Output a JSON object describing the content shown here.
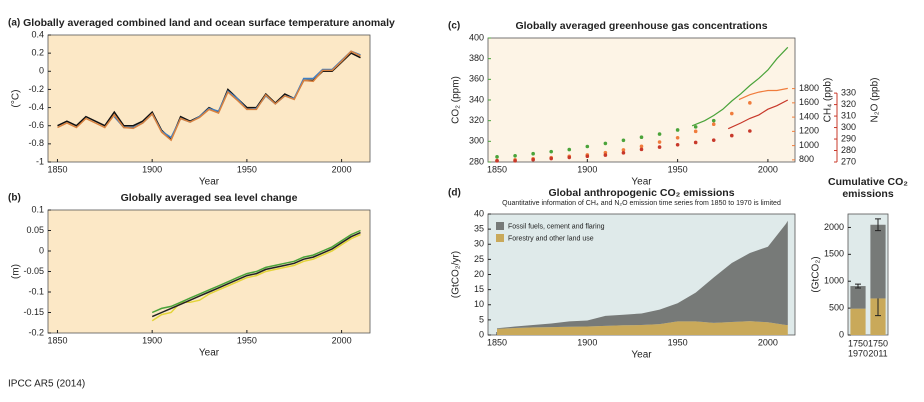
{
  "chart_data": [
    {
      "type": "line",
      "panel_label": "(a)",
      "title": "Globally averaged combined land and ocean surface temperature anomaly",
      "xlabel": "Year",
      "ylabel": "(°C)",
      "background": "#fce8c6",
      "xlim": [
        1845,
        2015
      ],
      "xticks": [
        1850,
        1900,
        1950,
        2000
      ],
      "ylim": [
        -1,
        0.4
      ],
      "yticks": [
        -1,
        -0.8,
        -0.6,
        -0.4,
        -0.2,
        0,
        0.2,
        0.4
      ],
      "x": [
        1850,
        1855,
        1860,
        1865,
        1870,
        1875,
        1880,
        1885,
        1890,
        1895,
        1900,
        1905,
        1910,
        1915,
        1920,
        1925,
        1930,
        1935,
        1940,
        1945,
        1950,
        1955,
        1960,
        1965,
        1970,
        1975,
        1980,
        1985,
        1990,
        1995,
        2000,
        2005,
        2010
      ],
      "series": [
        {
          "color": "#111111",
          "values": [
            -0.6,
            -0.55,
            -0.6,
            -0.5,
            -0.55,
            -0.6,
            -0.45,
            -0.6,
            -0.6,
            -0.55,
            -0.45,
            -0.65,
            -0.75,
            -0.5,
            -0.55,
            -0.5,
            -0.4,
            -0.45,
            -0.2,
            -0.3,
            -0.4,
            -0.4,
            -0.25,
            -0.35,
            -0.25,
            -0.3,
            -0.1,
            -0.1,
            0.0,
            0.0,
            0.1,
            0.2,
            0.15
          ]
        },
        {
          "color": "#3f7fc4",
          "values": [
            null,
            null,
            null,
            null,
            null,
            null,
            -0.5,
            -0.62,
            -0.62,
            -0.57,
            -0.47,
            -0.66,
            -0.73,
            -0.52,
            -0.56,
            -0.5,
            -0.41,
            -0.44,
            -0.22,
            -0.3,
            -0.42,
            -0.41,
            -0.27,
            -0.36,
            -0.27,
            -0.3,
            -0.08,
            -0.08,
            0.02,
            0.02,
            0.12,
            0.22,
            0.18
          ]
        },
        {
          "color": "#d9823f",
          "values": [
            -0.62,
            -0.57,
            -0.62,
            -0.52,
            -0.57,
            -0.62,
            -0.48,
            -0.62,
            -0.63,
            -0.57,
            -0.47,
            -0.67,
            -0.76,
            -0.52,
            -0.56,
            -0.51,
            -0.42,
            -0.46,
            -0.23,
            -0.32,
            -0.42,
            -0.42,
            -0.26,
            -0.36,
            -0.27,
            -0.31,
            -0.1,
            -0.11,
            0.01,
            0.01,
            0.11,
            0.22,
            0.17
          ]
        }
      ]
    },
    {
      "type": "line",
      "panel_label": "(b)",
      "title": "Globally averaged sea level change",
      "xlabel": "Year",
      "ylabel": "(m)",
      "background": "#fce8c6",
      "xlim": [
        1845,
        2015
      ],
      "xticks": [
        1850,
        1900,
        1950,
        2000
      ],
      "ylim": [
        -0.2,
        0.1
      ],
      "yticks": [
        -0.2,
        -0.15,
        -0.1,
        -0.05,
        0,
        0.05,
        0.1
      ],
      "x": [
        1900,
        1905,
        1910,
        1915,
        1920,
        1925,
        1930,
        1935,
        1940,
        1945,
        1950,
        1955,
        1960,
        1965,
        1970,
        1975,
        1980,
        1985,
        1990,
        1995,
        2000,
        2005,
        2010
      ],
      "series": [
        {
          "color": "#e3d43a",
          "values": [
            -0.17,
            -0.155,
            -0.15,
            -0.125,
            -0.125,
            -0.12,
            -0.105,
            -0.095,
            -0.085,
            -0.075,
            -0.065,
            -0.06,
            -0.05,
            -0.045,
            -0.04,
            -0.035,
            -0.025,
            -0.02,
            -0.01,
            0,
            0.015,
            0.03,
            0.04
          ]
        },
        {
          "color": "#4aa33a",
          "values": [
            -0.15,
            -0.14,
            -0.135,
            -0.125,
            -0.115,
            -0.105,
            -0.095,
            -0.085,
            -0.075,
            -0.065,
            -0.055,
            -0.05,
            -0.04,
            -0.035,
            -0.03,
            -0.025,
            -0.015,
            -0.01,
            0,
            0.01,
            0.025,
            0.04,
            0.05
          ]
        },
        {
          "color": "#222222",
          "values": [
            -0.16,
            -0.15,
            -0.14,
            -0.13,
            -0.12,
            -0.11,
            -0.1,
            -0.09,
            -0.08,
            -0.07,
            -0.06,
            -0.055,
            -0.045,
            -0.04,
            -0.035,
            -0.03,
            -0.02,
            -0.015,
            -0.005,
            0.005,
            0.02,
            0.035,
            0.045
          ]
        }
      ]
    },
    {
      "type": "line",
      "panel_label": "(c)",
      "title": "Globally averaged greenhouse gas concentrations",
      "xlabel": "Year",
      "ylabel": "CO₂ (ppm)",
      "y2label": "CH₄ (ppb)",
      "y3label": "N₂O (ppb)",
      "background": "#fdf4e6",
      "axis_colors": true,
      "xlim": [
        1845,
        2015
      ],
      "xticks": [
        1850,
        1900,
        1950,
        2000
      ],
      "ylim": [
        280,
        400
      ],
      "yticks": [
        280,
        300,
        320,
        340,
        360,
        380,
        400
      ],
      "y2lim": [
        770,
        2510
      ],
      "y2ticks": [
        800,
        1000,
        1200,
        1400,
        1600,
        1800
      ],
      "y3lim": [
        270,
        378
      ],
      "y3ticks": [
        270,
        280,
        290,
        300,
        310,
        320,
        330
      ],
      "series": [
        {
          "color": "#4aa33a",
          "axis": "y",
          "mode": "markers",
          "x": [
            1850,
            1860,
            1870,
            1880,
            1890,
            1900,
            1910,
            1920,
            1930,
            1940,
            1950,
            1960,
            1970
          ],
          "values": [
            285,
            286,
            288,
            290,
            292,
            295,
            298,
            301,
            304,
            307,
            311,
            314,
            320
          ]
        },
        {
          "color": "#4aa33a",
          "axis": "y",
          "x": [
            1958,
            1965,
            1970,
            1975,
            1980,
            1985,
            1990,
            1995,
            2000,
            2005,
            2011
          ],
          "values": [
            315,
            320,
            325,
            331,
            339,
            346,
            354,
            361,
            369,
            380,
            391
          ]
        },
        {
          "color": "#f07c3c",
          "axis": "y2",
          "mode": "markers",
          "x": [
            1850,
            1860,
            1870,
            1880,
            1890,
            1900,
            1910,
            1920,
            1930,
            1940,
            1950,
            1960,
            1970,
            1980,
            1990
          ],
          "values": [
            790,
            800,
            815,
            830,
            850,
            870,
            900,
            940,
            990,
            1050,
            1110,
            1200,
            1300,
            1450,
            1600
          ]
        },
        {
          "color": "#f07c3c",
          "axis": "y2",
          "x": [
            1984,
            1990,
            1995,
            2000,
            2005,
            2011
          ],
          "values": [
            1645,
            1714,
            1751,
            1773,
            1774,
            1803
          ]
        },
        {
          "color": "#c8382a",
          "axis": "y3",
          "mode": "markers",
          "x": [
            1850,
            1860,
            1870,
            1880,
            1890,
            1900,
            1910,
            1920,
            1930,
            1940,
            1950,
            1960,
            1970,
            1980,
            1990
          ],
          "values": [
            271,
            271,
            272,
            273,
            274,
            275,
            276,
            278,
            281,
            283,
            285,
            287,
            289,
            293,
            297
          ]
        },
        {
          "color": "#c8382a",
          "axis": "y3",
          "x": [
            1978,
            1985,
            1990,
            1995,
            2000,
            2005,
            2011
          ],
          "values": [
            299,
            304,
            308,
            311,
            316,
            319,
            324
          ]
        }
      ]
    },
    {
      "type": "area",
      "panel_label": "(d)",
      "title": "Global anthropogenic CO₂ emissions",
      "subtitle": "Quantitative information of CH₄ and N₂O emission time series from 1850 to 1970 is limited",
      "xlabel": "Year",
      "ylabel": "(GtCO₂/yr)",
      "background": "#dfeaea",
      "legend": "upper left",
      "xlim": [
        1845,
        2015
      ],
      "xticks": [
        1850,
        1900,
        1950,
        2000
      ],
      "ylim": [
        0,
        40
      ],
      "yticks": [
        0,
        5,
        10,
        15,
        20,
        25,
        30,
        35,
        40
      ],
      "x": [
        1850,
        1860,
        1870,
        1880,
        1890,
        1900,
        1910,
        1920,
        1930,
        1940,
        1950,
        1960,
        1970,
        1980,
        1990,
        2000,
        2010,
        2011
      ],
      "series": [
        {
          "name": "Fossil fuels, cement and flaring",
          "color": "#777a78",
          "values": [
            0.2,
            0.5,
            0.8,
            1.2,
            1.8,
            2.0,
            3.3,
            3.5,
            3.8,
            4.8,
            6.0,
            9.5,
            15,
            19.5,
            22.5,
            25,
            33.5,
            34.5
          ]
        },
        {
          "name": "Forestry and other land use",
          "color": "#c9a95a",
          "values": [
            2.0,
            2.3,
            2.5,
            2.6,
            2.7,
            2.8,
            3.0,
            3.2,
            3.3,
            3.6,
            4.5,
            4.5,
            4.0,
            4.3,
            4.6,
            4.2,
            3.3,
            3.3
          ]
        }
      ]
    },
    {
      "type": "bar",
      "title": [
        "Cumulative CO₂",
        "emissions"
      ],
      "ylabel": "(GtCO₂)",
      "background": "#dfeaea",
      "categories": [
        [
          "1750",
          "1970"
        ],
        [
          "1750",
          "2011"
        ]
      ],
      "ylim": [
        0,
        2250
      ],
      "yticks": [
        0,
        500,
        1000,
        1500,
        2000
      ],
      "series": [
        {
          "color": "#777a78",
          "values": [
            420,
            1370
          ],
          "errors": [
            35,
            110
          ]
        },
        {
          "color": "#c9a95a",
          "values": [
            490,
            680
          ],
          "errors": [
            null,
            320
          ]
        }
      ]
    }
  ],
  "footer": "IPCC AR5 (2014)"
}
